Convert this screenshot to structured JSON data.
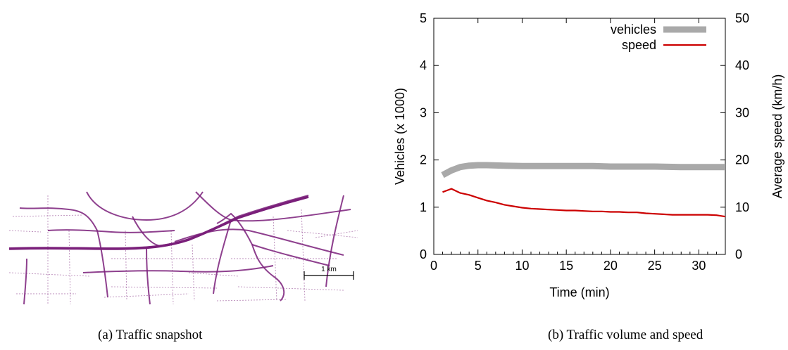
{
  "figure_a": {
    "caption": "(a) Traffic snapshot",
    "scale_label": "1 km",
    "road_color": "#7a1f7a"
  },
  "figure_b": {
    "caption": "(b) Traffic volume and speed"
  },
  "chart_data": {
    "type": "line",
    "xlabel": "Time (min)",
    "ylabel": "Vehicles (x 1000)",
    "y2label": "Average speed (km/h)",
    "xlim": [
      0,
      33
    ],
    "ylim": [
      0,
      5
    ],
    "y2lim": [
      0,
      50
    ],
    "xticks": [
      0,
      5,
      10,
      15,
      20,
      25,
      30
    ],
    "yticks": [
      0,
      1,
      2,
      3,
      4,
      5
    ],
    "y2ticks": [
      0,
      10,
      20,
      30,
      40,
      50
    ],
    "legend_position": "top-right",
    "grid": false,
    "series": [
      {
        "name": "vehicles",
        "axis": "left",
        "color": "#a9a9a9",
        "x": [
          1,
          2,
          3,
          4,
          5,
          6,
          8,
          10,
          12,
          15,
          18,
          20,
          22,
          25,
          28,
          30,
          33
        ],
        "y": [
          1.68,
          1.78,
          1.85,
          1.88,
          1.89,
          1.89,
          1.88,
          1.87,
          1.87,
          1.87,
          1.87,
          1.86,
          1.86,
          1.86,
          1.85,
          1.85,
          1.85
        ]
      },
      {
        "name": "speed",
        "axis": "right",
        "color": "#cc0000",
        "x": [
          1,
          2,
          3,
          4,
          5,
          6,
          7,
          8,
          9,
          10,
          11,
          12,
          13,
          14,
          15,
          16,
          17,
          18,
          19,
          20,
          21,
          22,
          23,
          24,
          25,
          26,
          27,
          28,
          29,
          30,
          31,
          32,
          33
        ],
        "y": [
          13.2,
          13.9,
          13.0,
          12.6,
          12.0,
          11.4,
          11.0,
          10.5,
          10.2,
          9.9,
          9.7,
          9.6,
          9.5,
          9.4,
          9.3,
          9.3,
          9.2,
          9.1,
          9.1,
          9.0,
          9.0,
          8.9,
          8.9,
          8.7,
          8.6,
          8.5,
          8.4,
          8.4,
          8.4,
          8.4,
          8.4,
          8.3,
          8.0
        ]
      }
    ]
  }
}
